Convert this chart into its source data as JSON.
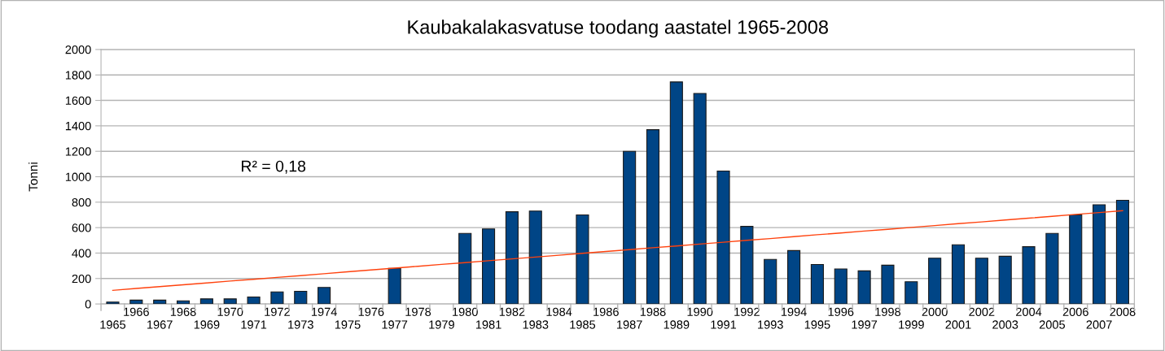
{
  "chart_data": {
    "type": "bar",
    "title": "Kaubakalakasvatuse toodang aastatel 1965-2008",
    "ylabel": "Tonni",
    "categories": [
      "1965",
      "1966",
      "1967",
      "1968",
      "1969",
      "1970",
      "1971",
      "1972",
      "1973",
      "1974",
      "1975",
      "1976",
      "1977",
      "1978",
      "1979",
      "1980",
      "1981",
      "1982",
      "1983",
      "1984",
      "1985",
      "1986",
      "1987",
      "1988",
      "1989",
      "1990",
      "1991",
      "1992",
      "1993",
      "1994",
      "1995",
      "1996",
      "1997",
      "1998",
      "1999",
      "2000",
      "2001",
      "2002",
      "2003",
      "2004",
      "2005",
      "2006",
      "2007",
      "2008"
    ],
    "series": [
      {
        "color": "#004586",
        "values": [
          15,
          30,
          30,
          25,
          40,
          40,
          55,
          95,
          100,
          130,
          null,
          null,
          280,
          null,
          null,
          555,
          590,
          725,
          730,
          null,
          700,
          null,
          1200,
          1370,
          1745,
          1655,
          1045,
          610,
          350,
          420,
          310,
          275,
          260,
          305,
          175,
          360,
          465,
          360,
          375,
          450,
          555,
          700,
          780,
          815
        ]
      },
      {
        "type": "line",
        "color": "#ff420e",
        "values": [
          107,
          122,
          136,
          151,
          165,
          180,
          194,
          209,
          223,
          238,
          253,
          267,
          282,
          296,
          311,
          325,
          340,
          354,
          369,
          383,
          398,
          413,
          427,
          442,
          456,
          471,
          485,
          500,
          514,
          529,
          544,
          558,
          573,
          587,
          602,
          616,
          631,
          645,
          660,
          674,
          689,
          704,
          718,
          733
        ]
      }
    ],
    "ylim": [
      0,
      2000
    ],
    "yticks": [
      0,
      200,
      400,
      600,
      800,
      1000,
      1200,
      1400,
      1600,
      1800,
      2000
    ],
    "grid": "y",
    "legend": false,
    "annotations": [
      "R² = 0,18"
    ]
  }
}
